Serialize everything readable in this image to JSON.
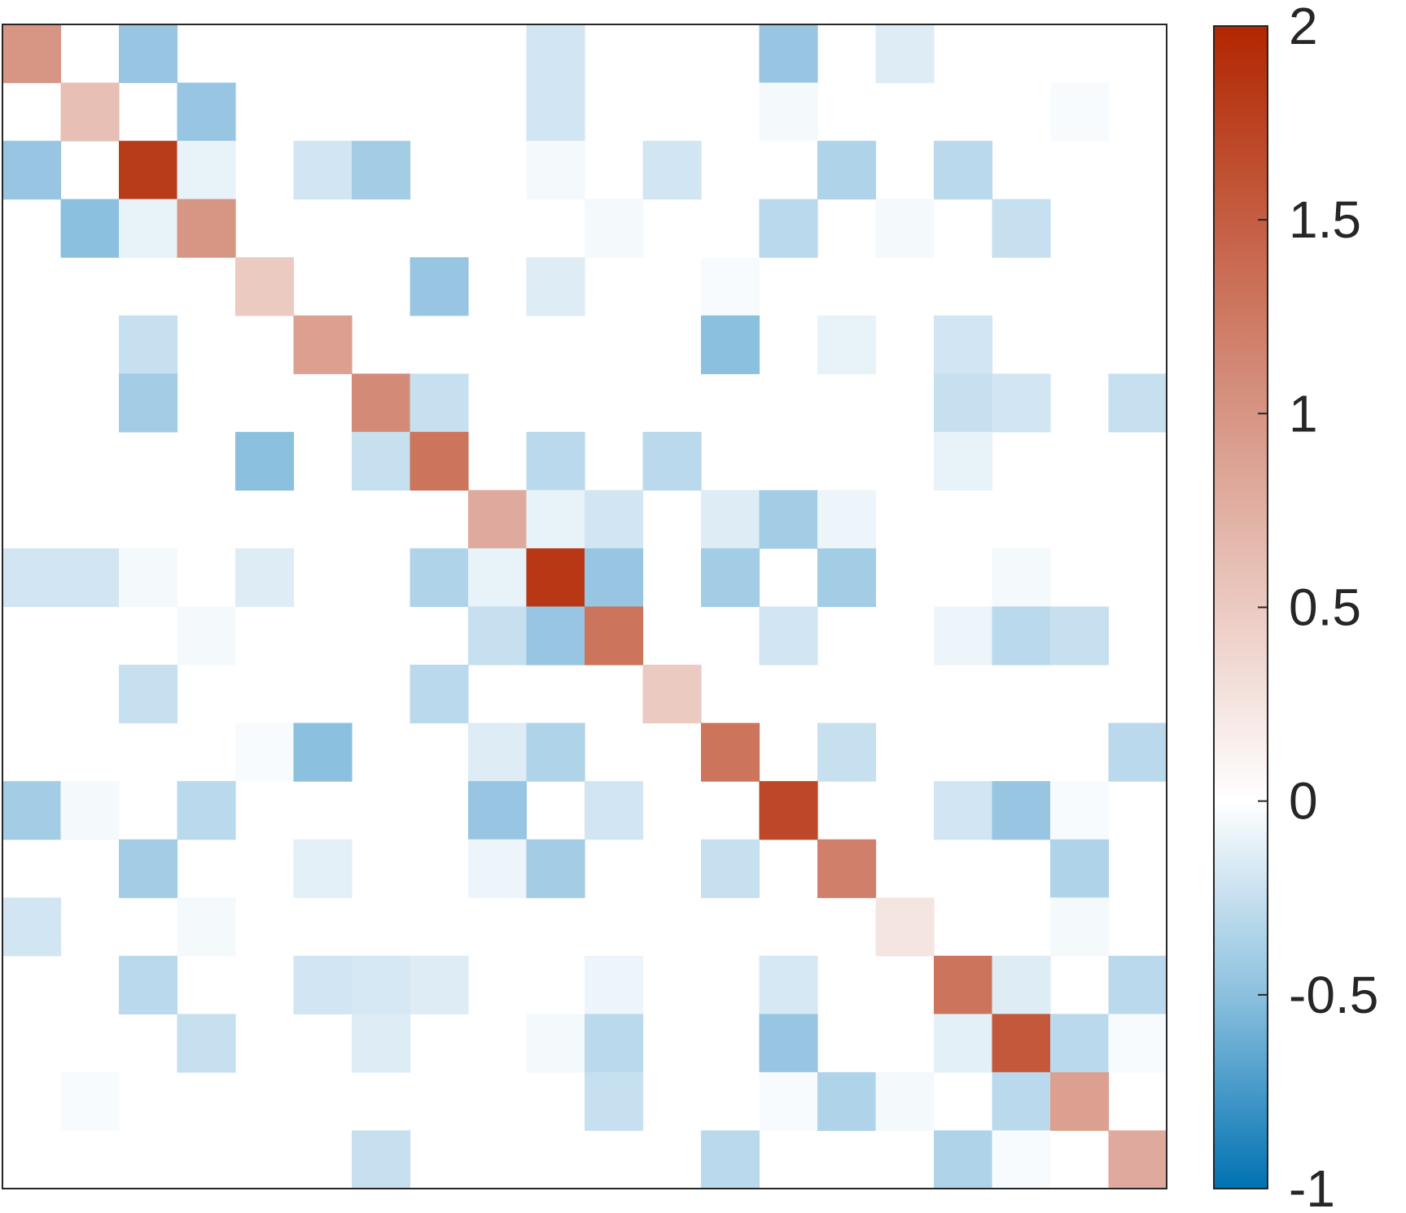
{
  "chart_data": {
    "type": "heatmap",
    "title": "",
    "xlabel": "",
    "ylabel": "",
    "rows": 20,
    "cols": 20,
    "values": [
      [
        1.0,
        0,
        -0.45,
        0,
        0,
        0,
        0,
        0,
        0,
        -0.2,
        0,
        0,
        0,
        -0.45,
        0,
        -0.15,
        0,
        0,
        0,
        0
      ],
      [
        0,
        0.6,
        0,
        -0.45,
        0,
        0,
        0,
        0,
        0,
        -0.2,
        0,
        0,
        0,
        -0.05,
        0,
        0,
        0,
        0,
        -0.03,
        0
      ],
      [
        -0.45,
        0,
        1.8,
        -0.1,
        0,
        -0.2,
        -0.4,
        0,
        0,
        -0.05,
        0,
        -0.2,
        0,
        0,
        -0.35,
        0,
        -0.3,
        0,
        0,
        0
      ],
      [
        0,
        -0.5,
        -0.1,
        1.0,
        0,
        0,
        0,
        0,
        0,
        0,
        -0.05,
        0,
        0,
        -0.3,
        0,
        -0.05,
        0,
        -0.25,
        0,
        0
      ],
      [
        0,
        0,
        0,
        0,
        0.5,
        0,
        0,
        -0.45,
        0,
        -0.15,
        0,
        0,
        -0.03,
        0,
        0,
        0,
        0,
        0,
        0,
        0
      ],
      [
        0,
        0,
        -0.25,
        0,
        0,
        0.9,
        0,
        0,
        0,
        0,
        0,
        0,
        -0.5,
        0,
        -0.1,
        0,
        -0.2,
        0,
        0,
        0
      ],
      [
        0,
        0,
        -0.4,
        0,
        0,
        0,
        1.1,
        -0.25,
        0,
        0,
        0,
        0,
        0,
        0,
        0,
        0,
        -0.25,
        -0.2,
        0,
        -0.25
      ],
      [
        0,
        0,
        0,
        0,
        -0.5,
        0,
        -0.25,
        1.3,
        0,
        -0.3,
        0,
        -0.3,
        0,
        0,
        0,
        0,
        -0.1,
        0,
        0,
        0
      ],
      [
        0,
        0,
        0,
        0,
        0,
        0,
        0,
        0,
        0.8,
        -0.1,
        -0.2,
        0,
        -0.15,
        -0.4,
        -0.08,
        0,
        0,
        0,
        0,
        0
      ],
      [
        -0.2,
        -0.2,
        -0.05,
        0,
        -0.15,
        0,
        0,
        -0.35,
        -0.1,
        1.85,
        -0.45,
        0,
        -0.4,
        0,
        -0.4,
        0,
        0,
        -0.05,
        0,
        0
      ],
      [
        0,
        0,
        0,
        -0.05,
        0,
        0,
        0,
        0,
        -0.25,
        -0.45,
        1.3,
        0,
        0,
        -0.2,
        0,
        0,
        -0.08,
        -0.3,
        -0.25,
        0
      ],
      [
        0,
        0,
        -0.25,
        0,
        0,
        0,
        0,
        -0.3,
        0,
        0,
        0,
        0.5,
        0,
        0,
        0,
        0,
        0,
        0,
        0,
        0
      ],
      [
        0,
        0,
        0,
        0,
        -0.03,
        -0.5,
        0,
        0,
        -0.15,
        -0.35,
        0,
        0,
        1.3,
        0,
        -0.25,
        0,
        0,
        0,
        0,
        -0.3
      ],
      [
        -0.4,
        -0.05,
        0,
        -0.3,
        0,
        0,
        0,
        0,
        -0.45,
        0,
        -0.2,
        0,
        0,
        1.7,
        0,
        0,
        -0.2,
        -0.45,
        -0.03,
        0
      ],
      [
        0,
        0,
        -0.4,
        0,
        0,
        -0.12,
        0,
        0,
        -0.08,
        -0.4,
        0,
        0,
        -0.25,
        0,
        1.2,
        0,
        0,
        0,
        -0.35,
        0
      ],
      [
        -0.2,
        0,
        0,
        -0.05,
        0,
        0,
        0,
        0,
        0,
        0,
        0,
        0,
        0,
        0,
        0,
        0.25,
        0,
        0,
        -0.05,
        0
      ],
      [
        0,
        0,
        -0.3,
        0,
        0,
        -0.2,
        -0.18,
        -0.15,
        0,
        0,
        -0.08,
        0,
        0,
        -0.18,
        0,
        0,
        1.3,
        -0.15,
        0,
        -0.3
      ],
      [
        0,
        0,
        0,
        -0.25,
        0,
        0,
        -0.15,
        0,
        0,
        -0.05,
        -0.3,
        0,
        0,
        -0.45,
        0,
        0,
        -0.12,
        1.55,
        -0.3,
        -0.03
      ],
      [
        0,
        -0.03,
        0,
        0,
        0,
        0,
        0,
        0,
        0,
        0,
        -0.25,
        0,
        0,
        -0.03,
        -0.35,
        -0.05,
        0,
        -0.3,
        0.9,
        0
      ],
      [
        0,
        0,
        0,
        0,
        0,
        0,
        -0.25,
        0,
        0,
        0,
        0,
        0,
        -0.3,
        0,
        0,
        0,
        -0.35,
        -0.03,
        0,
        0.8
      ]
    ],
    "colorbar": {
      "range": [
        -1,
        2
      ],
      "ticks": [
        -1,
        -0.5,
        0,
        0.5,
        1,
        1.5,
        2
      ],
      "tick_labels": [
        "-1",
        "-0.5",
        "0",
        "0.5",
        "1",
        "1.5",
        "2"
      ],
      "colors": {
        "negative_end": "#0072b2",
        "mid_negative": "#8cc0df",
        "zero": "#ffffff",
        "mid_positive": "#d79584",
        "positive_end": "#b22600"
      }
    },
    "grid": false,
    "legend": "colorbar-right"
  }
}
